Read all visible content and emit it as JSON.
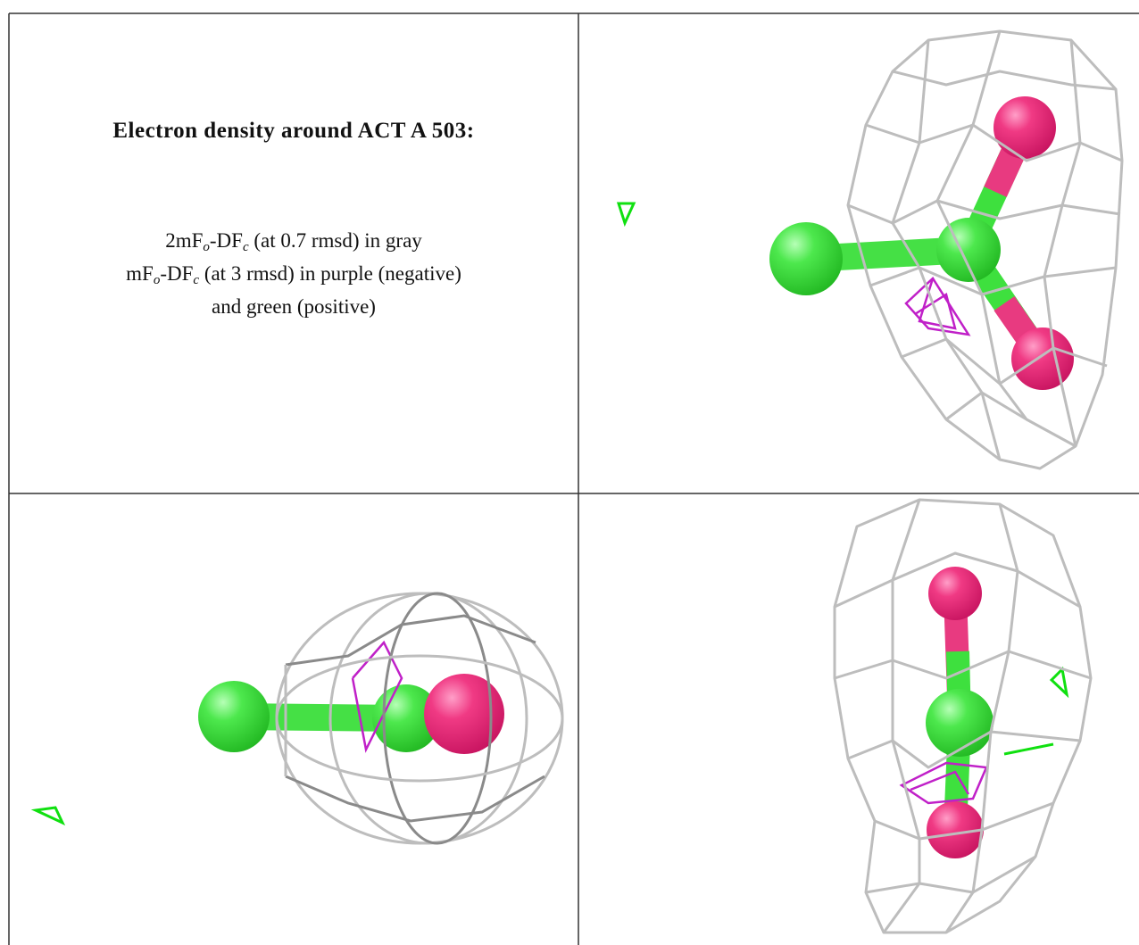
{
  "title": "Electron density around ACT A 503:",
  "legend_lines": [
    [
      "2mF",
      "o",
      "-DF",
      "c",
      " (at 0.7 rmsd) in gray"
    ],
    [
      "mF",
      "o",
      "-DF",
      "c",
      " (at 3 rmsd) in purple (negative)"
    ],
    [
      "and green (positive)"
    ]
  ]
}
